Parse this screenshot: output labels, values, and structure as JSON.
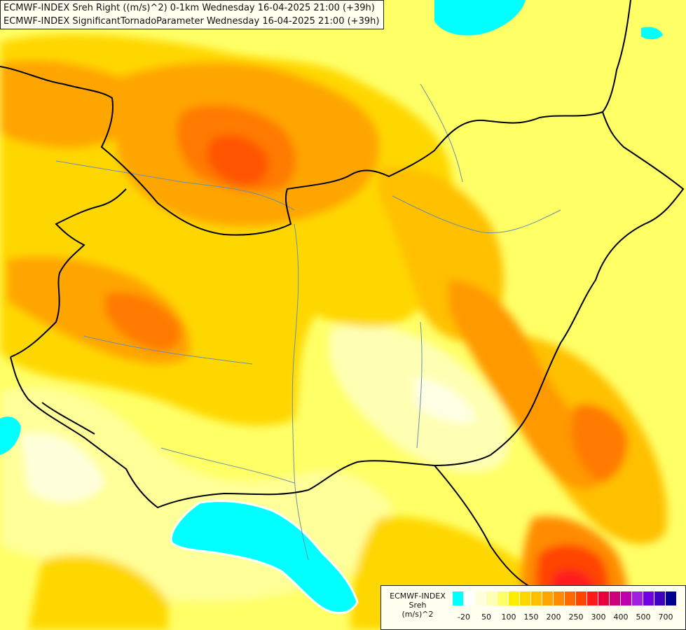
{
  "title": {
    "line1": "ECMWF-INDEX Sreh Right ((m/s)^2) 0-1km Wednesday 16-04-2025 21:00 (+39h)",
    "line2": "ECMWF-INDEX SignificantTornadoParameter Wednesday 16-04-2025 21:00 (+39h)"
  },
  "legend": {
    "line1": "ECMWF-INDEX",
    "line2": "Sreh",
    "line3": "(m/s)^2",
    "colors": [
      "#00ffff",
      "#ffffff",
      "#ffffdc",
      "#ffffb4",
      "#ffff66",
      "#ffee00",
      "#ffd700",
      "#ffc000",
      "#ffa500",
      "#ff8c00",
      "#ff6a00",
      "#ff4500",
      "#ff1a1a",
      "#e6003c",
      "#cc0077",
      "#c000b0",
      "#a020e0",
      "#7000e0",
      "#4000c0",
      "#000090"
    ],
    "ticks": [
      "-20",
      "50",
      "100",
      "150",
      "200",
      "250",
      "300",
      "400",
      "500",
      "700"
    ]
  },
  "colors": {
    "cyan": "#00ffff",
    "pale": "#ffffcc",
    "light_yellow": "#ffff99",
    "yellow": "#ffff33",
    "gold": "#ffd700",
    "orange_light": "#ffb800",
    "orange": "#ff9900",
    "orange_dark": "#ff7a00",
    "red_orange": "#ff5500",
    "red": "#ff2222"
  }
}
